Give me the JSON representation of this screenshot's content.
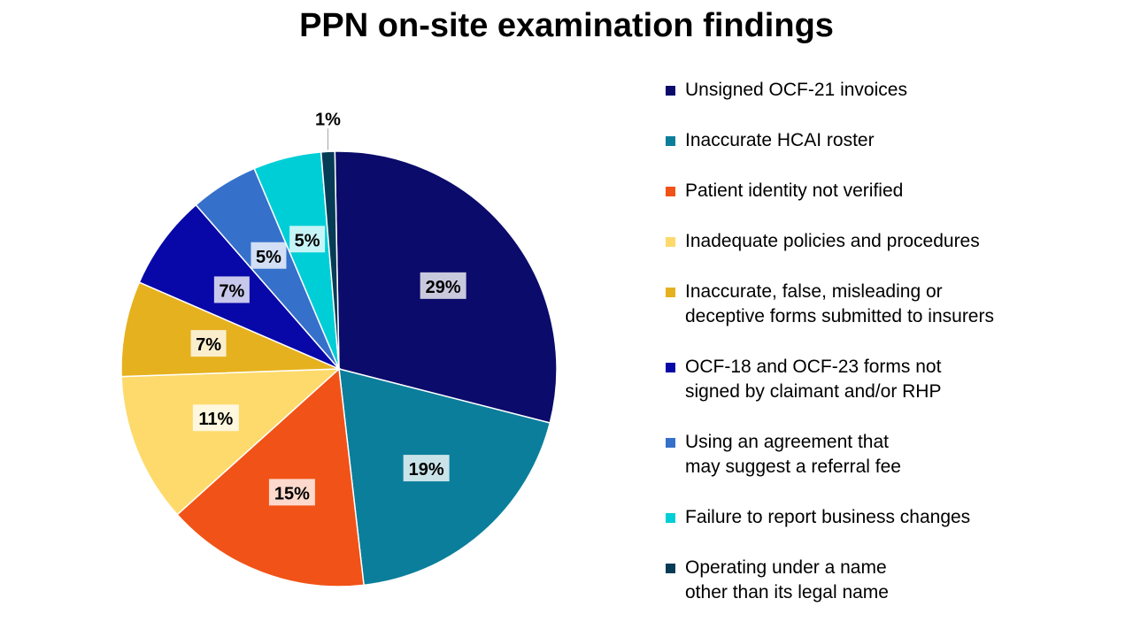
{
  "chart_data": {
    "type": "pie",
    "title": "PPN on-site examination findings",
    "slices": [
      {
        "label": "Unsigned OCF-21 invoices",
        "value": 29,
        "display": "29%",
        "color": "#0B0B6B"
      },
      {
        "label": "Inaccurate HCAI roster",
        "value": 19,
        "display": "19%",
        "color": "#0B7E9B"
      },
      {
        "label": "Patient identity not verified",
        "value": 15,
        "display": "15%",
        "color": "#F15217"
      },
      {
        "label": "Inadequate policies and procedures",
        "value": 11,
        "display": "11%",
        "color": "#FDDA6B"
      },
      {
        "label": "Inaccurate, false, misleading or\ndeceptive forms submitted to insurers",
        "value": 7,
        "display": "7%",
        "color": "#E6B11E"
      },
      {
        "label": "OCF-18 and OCF-23 forms not\nsigned by claimant and/or RHP",
        "value": 7,
        "display": "7%",
        "color": "#0808A8"
      },
      {
        "label": "Using an agreement that\nmay suggest a referral fee",
        "value": 5,
        "display": "5%",
        "color": "#3570CB"
      },
      {
        "label": "Failure to report business changes",
        "value": 5,
        "display": "5%",
        "color": "#00CED6"
      },
      {
        "label": "Operating under a name\nother than its legal name",
        "value": 1,
        "display": "1%",
        "color": "#063B55"
      }
    ],
    "legend_position": "right"
  }
}
